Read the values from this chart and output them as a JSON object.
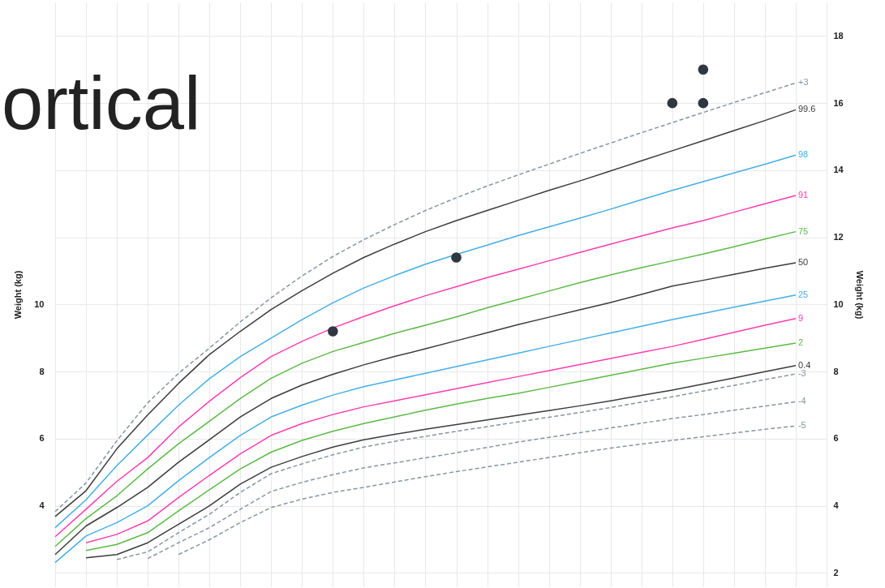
{
  "chart_data": {
    "type": "line",
    "title": "ortical",
    "ylabel": "Weight (kg)",
    "y2label": "Weight (kg)",
    "categories": [
      null,
      null,
      null,
      null,
      null,
      null,
      null,
      null,
      null,
      null,
      null,
      null,
      null,
      null,
      null,
      null,
      null,
      null,
      null,
      null,
      null,
      null,
      null,
      null,
      null,
      null
    ],
    "ylim": [
      1.6,
      19
    ],
    "yticks": [
      4,
      6,
      8,
      10
    ],
    "y2lim": [
      1.6,
      19
    ],
    "y2ticks": [
      2,
      4,
      6,
      8,
      10,
      12,
      14,
      16,
      18
    ],
    "tick_labels": "y",
    "grid": true,
    "series": [
      {
        "name": "+3",
        "color": "#8795a3",
        "line_style": "dashed",
        "values": [
          3.83,
          4.68,
          5.94,
          7.07,
          7.95,
          8.7,
          9.48,
          10.2,
          10.85,
          11.43,
          11.93,
          12.38,
          12.8,
          13.18,
          13.53,
          13.86,
          14.18,
          14.5,
          14.81,
          15.12,
          15.42,
          15.72,
          16.02,
          16.31,
          16.6,
          null
        ]
      },
      {
        "name": "99.6",
        "color": "#3c3c3c",
        "values": [
          3.68,
          4.45,
          5.7,
          6.71,
          7.65,
          8.51,
          9.2,
          9.85,
          10.41,
          10.93,
          11.4,
          11.8,
          12.17,
          12.5,
          12.8,
          13.1,
          13.4,
          13.68,
          13.98,
          14.28,
          14.58,
          14.88,
          15.18,
          15.48,
          15.8,
          null
        ]
      },
      {
        "name": "98",
        "color": "#45aee6",
        "values": [
          3.35,
          4.18,
          5.2,
          6.11,
          7.0,
          7.79,
          8.45,
          9.0,
          9.55,
          10.05,
          10.49,
          10.86,
          11.2,
          11.49,
          11.77,
          12.05,
          12.31,
          12.57,
          12.84,
          13.12,
          13.4,
          13.66,
          13.92,
          14.18,
          14.45,
          null
        ]
      },
      {
        "name": "91",
        "color": "#ff3db0",
        "values": [
          3.08,
          3.9,
          4.73,
          5.44,
          6.35,
          7.12,
          7.82,
          8.45,
          8.9,
          9.3,
          9.64,
          9.96,
          10.26,
          10.53,
          10.8,
          11.05,
          11.3,
          11.55,
          11.8,
          12.04,
          12.28,
          12.5,
          12.75,
          13.0,
          13.25,
          null
        ]
      },
      {
        "name": "75",
        "color": "#5cb947",
        "values": [
          2.79,
          3.62,
          4.3,
          5.1,
          5.85,
          6.52,
          7.2,
          7.8,
          8.25,
          8.6,
          8.87,
          9.14,
          9.38,
          9.63,
          9.9,
          10.15,
          10.4,
          10.65,
          10.88,
          11.1,
          11.3,
          11.5,
          11.72,
          11.95,
          12.17,
          null
        ]
      },
      {
        "name": "50",
        "color": "#3c3c3c",
        "values": [
          2.55,
          3.4,
          3.95,
          4.55,
          5.3,
          5.97,
          6.65,
          7.2,
          7.6,
          7.92,
          8.2,
          8.45,
          8.68,
          8.92,
          9.16,
          9.4,
          9.62,
          9.84,
          10.06,
          10.3,
          10.55,
          10.72,
          10.9,
          11.08,
          11.24,
          null
        ]
      },
      {
        "name": "25",
        "color": "#45aee6",
        "values": [
          2.31,
          3.1,
          3.5,
          4.0,
          4.75,
          5.44,
          6.1,
          6.65,
          7.0,
          7.3,
          7.55,
          7.75,
          7.95,
          8.15,
          8.35,
          8.55,
          8.75,
          8.95,
          9.15,
          9.35,
          9.55,
          9.73,
          9.92,
          10.1,
          10.28,
          null
        ]
      },
      {
        "name": "9",
        "color": "#ff3db0",
        "values": [
          null,
          2.9,
          3.15,
          3.55,
          4.25,
          4.91,
          5.55,
          6.1,
          6.45,
          6.72,
          6.95,
          7.13,
          7.31,
          7.49,
          7.67,
          7.85,
          8.03,
          8.21,
          8.39,
          8.57,
          8.75,
          8.96,
          9.17,
          9.38,
          9.58,
          null
        ]
      },
      {
        "name": "2",
        "color": "#5cb947",
        "values": [
          null,
          2.67,
          2.85,
          3.2,
          3.85,
          4.48,
          5.1,
          5.6,
          5.95,
          6.22,
          6.45,
          6.65,
          6.85,
          7.03,
          7.2,
          7.35,
          7.53,
          7.71,
          7.89,
          8.07,
          8.25,
          8.4,
          8.55,
          8.7,
          8.85,
          null
        ]
      },
      {
        "name": "0.4",
        "color": "#3c3c3c",
        "values": [
          null,
          2.45,
          2.55,
          2.9,
          3.45,
          4.0,
          4.65,
          5.15,
          5.47,
          5.75,
          5.97,
          6.13,
          6.28,
          6.42,
          6.56,
          6.7,
          6.84,
          6.98,
          7.13,
          7.29,
          7.45,
          7.63,
          7.81,
          8.0,
          8.18,
          null
        ]
      },
      {
        "name": "-3",
        "color": "#8795a3",
        "line_style": "dashed",
        "values": [
          null,
          null,
          2.4,
          2.63,
          3.2,
          3.75,
          4.4,
          4.96,
          5.25,
          5.52,
          5.75,
          5.92,
          6.07,
          6.22,
          6.36,
          6.5,
          6.64,
          6.78,
          6.93,
          7.09,
          7.25,
          7.42,
          7.59,
          7.76,
          7.93,
          null
        ]
      },
      {
        "name": "-4",
        "color": "#8795a3",
        "line_style": "dashed",
        "values": [
          null,
          null,
          null,
          2.43,
          2.9,
          3.35,
          3.9,
          4.43,
          4.7,
          4.93,
          5.13,
          5.28,
          5.43,
          5.58,
          5.74,
          5.9,
          6.04,
          6.18,
          6.32,
          6.46,
          6.6,
          6.72,
          6.85,
          6.97,
          7.1,
          null
        ]
      },
      {
        "name": "-5",
        "color": "#8795a3",
        "line_style": "dashed",
        "values": [
          null,
          null,
          null,
          null,
          2.55,
          2.99,
          3.5,
          3.95,
          4.2,
          4.4,
          4.55,
          4.71,
          4.87,
          5.02,
          5.16,
          5.3,
          5.44,
          5.58,
          5.72,
          5.84,
          5.95,
          6.06,
          6.17,
          6.28,
          6.38,
          null
        ]
      },
      {
        "type": "scatter",
        "marker": "circle",
        "color": "#2f3742",
        "values": [
          null,
          null,
          null,
          null,
          null,
          null,
          null,
          null,
          null,
          9.2,
          null,
          null,
          null,
          11.4,
          null,
          null,
          null,
          null,
          null,
          null,
          16,
          17,
          null,
          null,
          null,
          null
        ]
      },
      {
        "type": "scatter",
        "marker": "circle",
        "color": "#2f3742",
        "values": [
          null,
          null,
          null,
          null,
          null,
          null,
          null,
          null,
          null,
          null,
          null,
          null,
          null,
          null,
          null,
          null,
          null,
          null,
          null,
          null,
          null,
          16,
          null,
          null,
          null,
          null
        ]
      }
    ]
  }
}
